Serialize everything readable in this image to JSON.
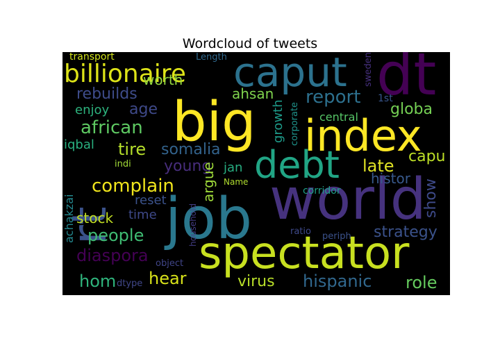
{
  "chart_data": {
    "type": "wordcloud",
    "title": "Wordcloud of tweets",
    "words": [
      {
        "text": "big",
        "color": "#fde725"
      },
      {
        "text": "index",
        "color": "#fde725"
      },
      {
        "text": "world",
        "color": "#46327e"
      },
      {
        "text": "job",
        "color": "#2a788e"
      },
      {
        "text": "spectator",
        "color": "#c8e020"
      },
      {
        "text": "caput",
        "color": "#2c728e"
      },
      {
        "text": "dt",
        "color": "#440154"
      },
      {
        "text": "rt",
        "color": "#3b528b"
      },
      {
        "text": "debt",
        "color": "#21a585"
      },
      {
        "text": "billionaire",
        "color": "#dde318"
      },
      {
        "text": "complain",
        "color": "#f0e51c"
      },
      {
        "text": "african",
        "color": "#5ec962"
      },
      {
        "text": "people",
        "color": "#3fbc73"
      },
      {
        "text": "somalia",
        "color": "#33638d"
      },
      {
        "text": "tire",
        "color": "#b5de2b"
      },
      {
        "text": "report",
        "color": "#2d708e"
      },
      {
        "text": "young",
        "color": "#472d7b"
      },
      {
        "text": "late",
        "color": "#e0e325"
      },
      {
        "text": "hear",
        "color": "#d8e219"
      },
      {
        "text": "virus",
        "color": "#b8de29"
      },
      {
        "text": "hispanic",
        "color": "#31688e"
      },
      {
        "text": "role",
        "color": "#65cb5e"
      },
      {
        "text": "hom",
        "color": "#2fb47c"
      },
      {
        "text": "diaspora",
        "color": "#440154"
      },
      {
        "text": "strategy",
        "color": "#3b528b"
      },
      {
        "text": "globa",
        "color": "#75d054"
      },
      {
        "text": "age",
        "color": "#3e4989"
      },
      {
        "text": "worth",
        "color": "#95d840"
      },
      {
        "text": "rebuilds",
        "color": "#3e4c8a"
      },
      {
        "text": "enjoy",
        "color": "#2db27d"
      },
      {
        "text": "ahsan",
        "color": "#7fd34e"
      },
      {
        "text": "stock",
        "color": "#c2df23"
      },
      {
        "text": "time",
        "color": "#3e4989"
      },
      {
        "text": "reset",
        "color": "#3b528b"
      },
      {
        "text": "iqbal",
        "color": "#29af7f"
      },
      {
        "text": "histor",
        "color": "#38598c"
      },
      {
        "text": "show",
        "color": "#3e4a89"
      },
      {
        "text": "capu",
        "color": "#bddf26"
      },
      {
        "text": "argue",
        "color": "#9fda3a"
      },
      {
        "text": "jan",
        "color": "#27ad81"
      },
      {
        "text": "growth",
        "color": "#1e9b8a"
      },
      {
        "text": "central",
        "color": "#56c667"
      },
      {
        "text": "achakzai",
        "color": "#24878e"
      },
      {
        "text": "transport",
        "color": "#d2e21b"
      },
      {
        "text": "Length",
        "color": "#30698e"
      },
      {
        "text": "sweden",
        "color": "#46307e"
      },
      {
        "text": "1st",
        "color": "#39568c"
      },
      {
        "text": "corporate",
        "color": "#1f948c"
      },
      {
        "text": "indi",
        "color": "#a2da37"
      },
      {
        "text": "Name",
        "color": "#b0dd2f"
      },
      {
        "text": "corridor",
        "color": "#1f9f88"
      },
      {
        "text": "household",
        "color": "#433d84"
      },
      {
        "text": "object",
        "color": "#404588"
      },
      {
        "text": "ratio",
        "color": "#3e4989"
      },
      {
        "text": "periph",
        "color": "#3b528b"
      },
      {
        "text": "dtype",
        "color": "#404788"
      }
    ]
  }
}
